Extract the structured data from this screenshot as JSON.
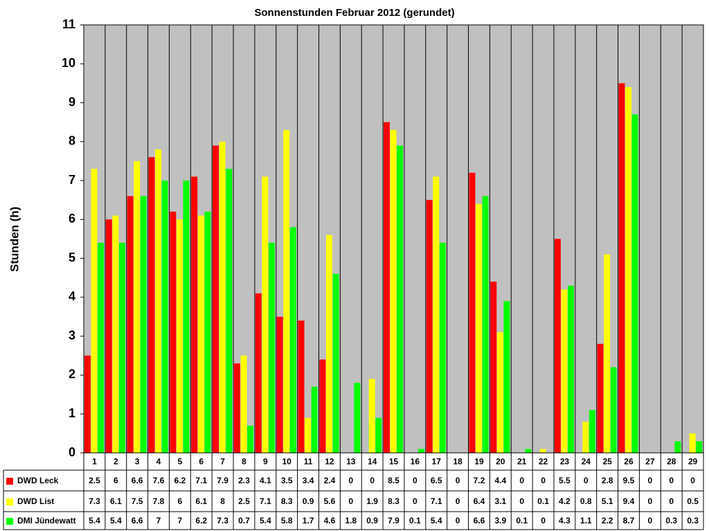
{
  "chart_data": {
    "type": "bar",
    "title": "Sonnenstunden Februar 2012 (gerundet)",
    "y_label": "Stunden (h)",
    "categories": [
      "1",
      "2",
      "3",
      "4",
      "5",
      "6",
      "7",
      "8",
      "9",
      "10",
      "11",
      "12",
      "13",
      "14",
      "15",
      "16",
      "17",
      "18",
      "19",
      "20",
      "21",
      "22",
      "23",
      "24",
      "25",
      "26",
      "27",
      "28",
      "29"
    ],
    "series": [
      {
        "name": "DWD Leck",
        "color": "#ff0000",
        "values": [
          2.5,
          6,
          6.6,
          7.6,
          6.2,
          7.1,
          7.9,
          2.3,
          4.1,
          3.5,
          3.4,
          2.4,
          0,
          0,
          8.5,
          0,
          6.5,
          0,
          7.2,
          4.4,
          0,
          0,
          5.5,
          0,
          2.8,
          9.5,
          0,
          0,
          0
        ]
      },
      {
        "name": "DWD List",
        "color": "#ffff00",
        "values": [
          7.3,
          6.1,
          7.5,
          7.8,
          6,
          6.1,
          8,
          2.5,
          7.1,
          8.3,
          0.9,
          5.6,
          0,
          1.9,
          8.3,
          0,
          7.1,
          0,
          6.4,
          3.1,
          0,
          0.1,
          4.2,
          0.8,
          5.1,
          9.4,
          0,
          0,
          0.5
        ]
      },
      {
        "name": "DMI Jündewatt",
        "color": "#00ff00",
        "values": [
          5.4,
          5.4,
          6.6,
          7,
          7,
          6.2,
          7.3,
          0.7,
          5.4,
          5.8,
          1.7,
          4.6,
          1.8,
          0.9,
          7.9,
          0.1,
          5.4,
          0,
          6.6,
          3.9,
          0.1,
          0,
          4.3,
          1.1,
          2.2,
          8.7,
          0,
          0.3,
          0.3
        ]
      }
    ],
    "ylim": [
      0,
      11
    ],
    "yticks": [
      0,
      1,
      2,
      3,
      4,
      5,
      6,
      7,
      8,
      9,
      10,
      11
    ],
    "plot_background": "#c0c0c0"
  }
}
